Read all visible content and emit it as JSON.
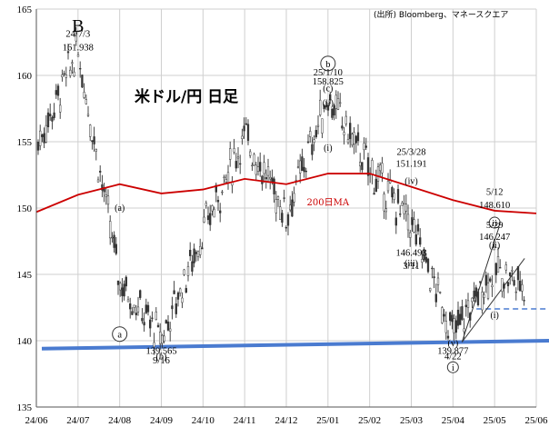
{
  "chart_data": {
    "type": "candlestick",
    "title": "米ドル/円 日足",
    "source": "(出所) Bloomberg、マネースクエア",
    "ylim": [
      135,
      165
    ],
    "yticks": [
      135,
      140,
      145,
      150,
      155,
      160,
      165
    ],
    "xticks": [
      "24/06",
      "24/07",
      "24/08",
      "24/09",
      "24/10",
      "24/11",
      "24/12",
      "25/01",
      "25/02",
      "25/03",
      "25/04",
      "25/05",
      "25/06"
    ],
    "grid": true,
    "series": [
      {
        "name": "200日MA",
        "color": "#cc0000",
        "points": [
          [
            "24/06",
            149.7
          ],
          [
            "24/07",
            151.0
          ],
          [
            "24/08",
            151.8
          ],
          [
            "24/09",
            151.1
          ],
          [
            "24/10",
            151.4
          ],
          [
            "24/11",
            152.2
          ],
          [
            "24/12",
            151.8
          ],
          [
            "25/01",
            152.6
          ],
          [
            "25/02",
            152.6
          ],
          [
            "25/03",
            151.6
          ],
          [
            "25/04",
            150.6
          ],
          [
            "25/05",
            149.8
          ],
          [
            "25/06",
            149.6
          ]
        ]
      }
    ],
    "price_path": [
      [
        "24/06",
        154.6
      ],
      [
        "24/07",
        161.9
      ],
      [
        "24/08",
        144.5
      ],
      [
        "24/09",
        140.2
      ],
      [
        "24/10",
        148.2
      ],
      [
        "24/11",
        155.5
      ],
      [
        "24/12",
        149.5
      ],
      [
        "25/01",
        158.4
      ],
      [
        "25/02",
        152.9
      ],
      [
        "25/03",
        148.8
      ],
      [
        "25/04",
        140.5
      ],
      [
        "25/05",
        145.5
      ],
      [
        "25/06",
        143.5
      ]
    ],
    "trendline": {
      "from": [
        "24/06",
        139.4
      ],
      "to": [
        "25/06",
        140.0
      ]
    },
    "support_level": 142.4,
    "annotations": [
      {
        "text": "B",
        "x": "24/07",
        "y": 163.3,
        "style": "big"
      },
      {
        "text": "24/7/3",
        "x": "24/07",
        "y": 162.9,
        "style": "ann"
      },
      {
        "text": "161.938",
        "x": "24/07",
        "y": 161.9,
        "style": "ann"
      },
      {
        "text": "(a)",
        "x": "24/08",
        "y": 149.8,
        "style": "wave"
      },
      {
        "text": "a",
        "x": "24/08",
        "y": 140.5,
        "style": "circle-big"
      },
      {
        "text": "139.565",
        "x": "24/09",
        "y": 139.0,
        "style": "ann"
      },
      {
        "text": "(b)",
        "x": "24/09",
        "y": 138.6,
        "style": "wave"
      },
      {
        "text": "9/16",
        "x": "24/09",
        "y": 138.3,
        "style": "ann"
      },
      {
        "text": "b",
        "x": "25/01",
        "y": 160.9,
        "style": "circle-big"
      },
      {
        "text": "25/1/10",
        "x": "25/01",
        "y": 160.0,
        "style": "ann"
      },
      {
        "text": "158.825",
        "x": "25/01",
        "y": 159.3,
        "style": "ann"
      },
      {
        "text": "(c)",
        "x": "25/01",
        "y": 158.8,
        "style": "wave"
      },
      {
        "text": "(ii)",
        "x": "25/01",
        "y": 157.7,
        "style": "wave"
      },
      {
        "text": "(i)",
        "x": "25/01",
        "y": 154.3,
        "style": "wave"
      },
      {
        "text": "25/3/28",
        "x": "25/03",
        "y": 154.0,
        "style": "ann"
      },
      {
        "text": "151.191",
        "x": "25/03",
        "y": 153.1,
        "style": "ann"
      },
      {
        "text": "(iv)",
        "x": "25/03",
        "y": 151.8,
        "style": "wave"
      },
      {
        "text": "146.493",
        "x": "25/03",
        "y": 146.4,
        "style": "ann"
      },
      {
        "text": "3/11",
        "x": "25/03",
        "y": 145.4,
        "style": "ann"
      },
      {
        "text": "(iii)",
        "x": "25/03",
        "y": 145.6,
        "style": "wave"
      },
      {
        "text": "139.877",
        "x": "25/04",
        "y": 139.0,
        "style": "ann"
      },
      {
        "text": "(v)",
        "x": "25/04",
        "y": 139.6,
        "style": "wave"
      },
      {
        "text": "4/22",
        "x": "25/04",
        "y": 138.6,
        "style": "ann"
      },
      {
        "text": "i",
        "x": "25/04",
        "y": 138.0,
        "style": "circle-small"
      },
      {
        "text": "5/12",
        "x": "25/05",
        "y": 151.0,
        "style": "ann"
      },
      {
        "text": "148.610",
        "x": "25/05",
        "y": 150.0,
        "style": "ann"
      },
      {
        "text": "ii",
        "x": "25/05",
        "y": 148.9,
        "style": "circle-small"
      },
      {
        "text": "5/29",
        "x": "25/05",
        "y": 148.5,
        "style": "ann"
      },
      {
        "text": "146.247",
        "x": "25/05",
        "y": 147.6,
        "style": "ann"
      },
      {
        "text": "(ii)",
        "x": "25/05",
        "y": 147.0,
        "style": "wave"
      },
      {
        "text": "(i)",
        "x": "25/05",
        "y": 141.7,
        "style": "wave"
      },
      {
        "text": "200日MA",
        "x": "25/01",
        "y": 150.2,
        "style": "ma"
      }
    ]
  }
}
